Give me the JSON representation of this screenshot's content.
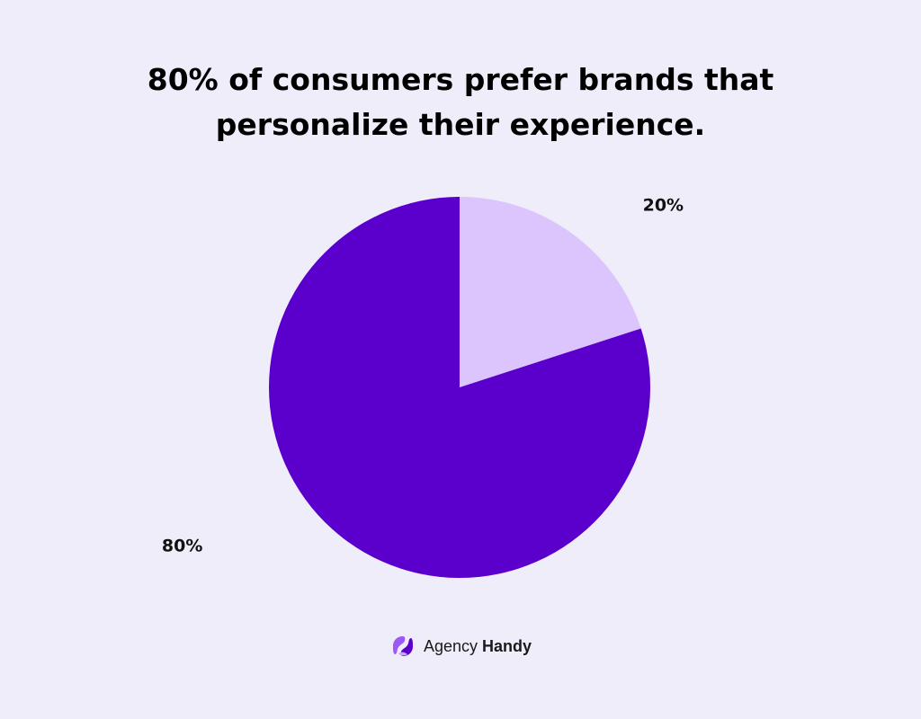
{
  "header": {
    "title_line_1": "80% of consumers prefer brands that",
    "title_line_2": "personalize their experience."
  },
  "chart_data": {
    "type": "pie",
    "title": "80% of consumers prefer brands that personalize their experience.",
    "slices": [
      {
        "label": "20%",
        "value": 20,
        "color": "#dcc5fd"
      },
      {
        "label": "80%",
        "value": 80,
        "color": "#5b00cc"
      }
    ],
    "start": "12 o'clock",
    "direction": "clockwise"
  },
  "brand": {
    "name_regular": "Agency ",
    "name_bold": "Handy",
    "logo_icon": "agency-handy-logo-icon",
    "logo_colors": [
      "#9b59f5",
      "#5b00cc"
    ]
  },
  "colors": {
    "background": "#efedfa",
    "title_text": "#000000"
  }
}
